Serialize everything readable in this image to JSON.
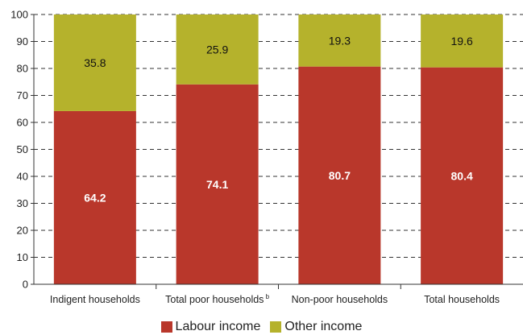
{
  "chart_data": {
    "type": "bar",
    "stacked": true,
    "categories": [
      "Indigent households",
      "Total poor households",
      "Non-poor households",
      "Total households"
    ],
    "category_superscripts": [
      "",
      "b",
      "",
      ""
    ],
    "series": [
      {
        "name": "Labour income",
        "values": [
          64.2,
          74.1,
          80.7,
          80.4
        ],
        "color": "#b9372b",
        "label_color": "#ffffff"
      },
      {
        "name": "Other income",
        "values": [
          35.8,
          25.9,
          19.3,
          19.6
        ],
        "color": "#b5b22c",
        "label_color": "#111111"
      }
    ],
    "ylim": [
      0,
      100
    ],
    "yticks": [
      0,
      10,
      20,
      30,
      40,
      50,
      60,
      70,
      80,
      90,
      100
    ],
    "grid": "dashed-horizontal",
    "legend_position": "bottom"
  }
}
